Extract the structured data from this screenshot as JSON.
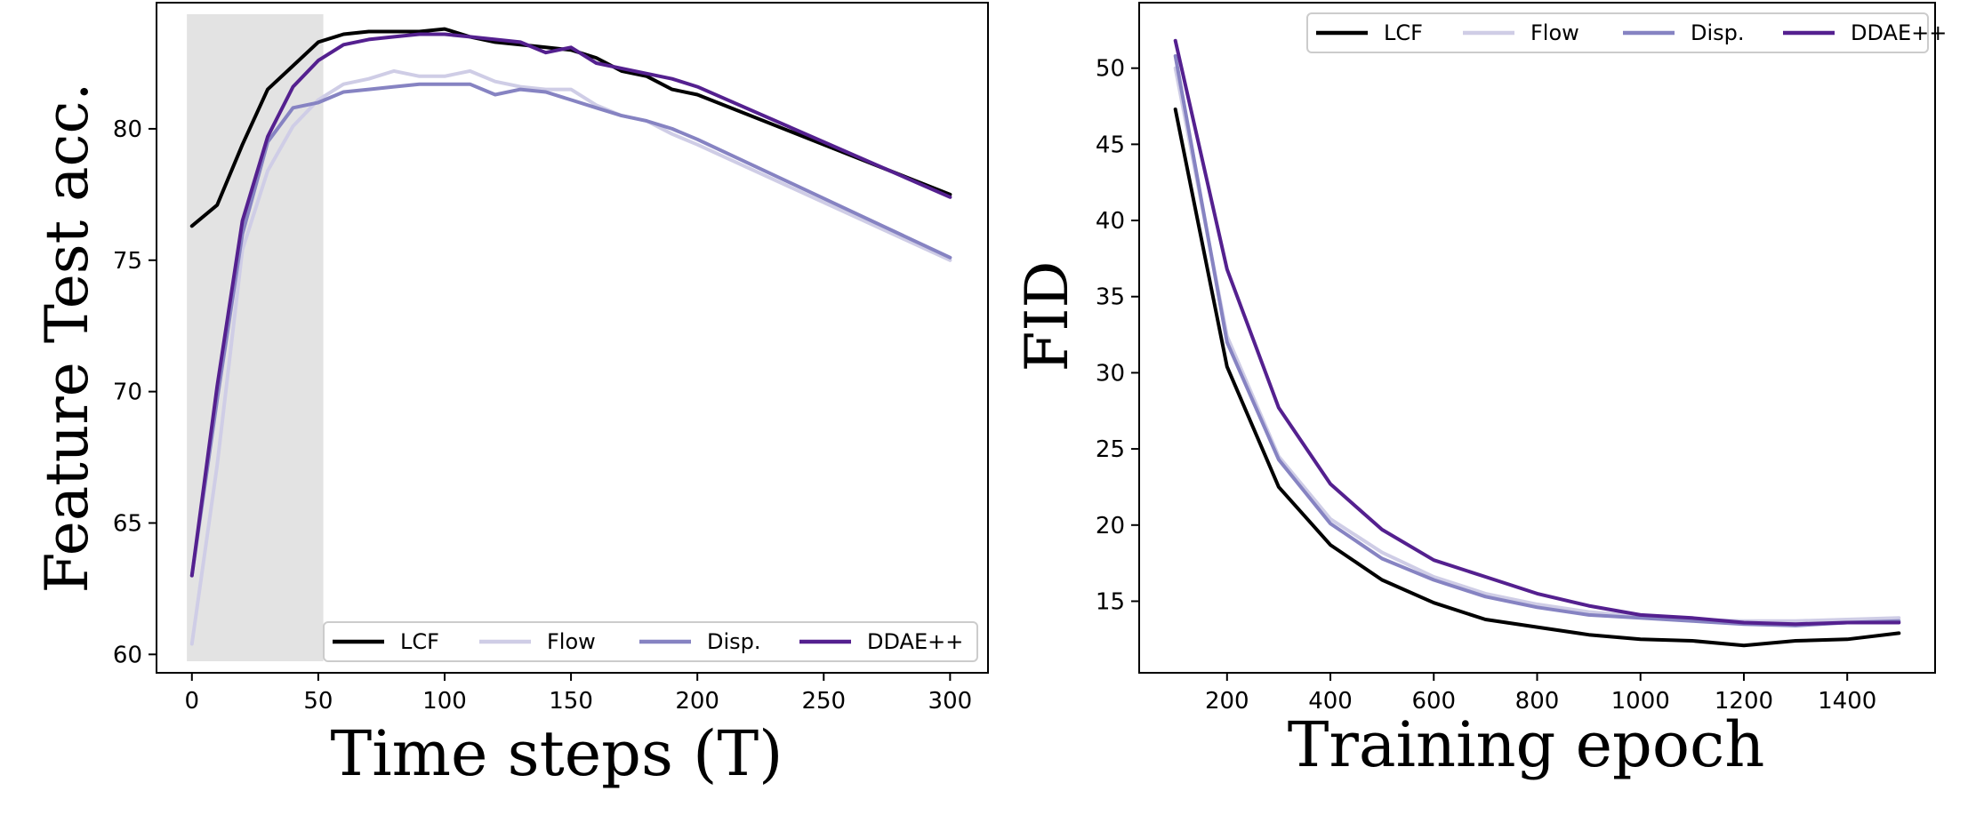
{
  "chart_data": [
    {
      "type": "line",
      "xlabel": "Time steps (T)",
      "ylabel": "Feature Test acc.",
      "xlim": [
        -14,
        315
      ],
      "ylim": [
        59.3,
        84.8
      ],
      "xticks": [
        0,
        50,
        100,
        150,
        200,
        250,
        300
      ],
      "yticks": [
        60,
        65,
        70,
        75,
        80
      ],
      "shaded_region": [
        -2,
        52
      ],
      "legend": [
        "LCF",
        "Flow",
        "Disp.",
        "DDAE++"
      ],
      "legend_position": "lower-right",
      "series": [
        {
          "name": "LCF",
          "color": "#000000",
          "x": [
            0,
            10,
            20,
            30,
            40,
            50,
            60,
            70,
            80,
            90,
            100,
            110,
            120,
            130,
            140,
            150,
            160,
            170,
            180,
            190,
            200,
            300
          ],
          "y": [
            76.3,
            77.1,
            79.4,
            81.5,
            82.4,
            83.3,
            83.6,
            83.7,
            83.7,
            83.7,
            83.8,
            83.5,
            83.3,
            83.2,
            83.1,
            83.0,
            82.7,
            82.2,
            82.0,
            81.5,
            81.3,
            77.5
          ]
        },
        {
          "name": "Flow",
          "color": "#cfcde6",
          "x": [
            0,
            10,
            20,
            30,
            40,
            50,
            60,
            70,
            80,
            90,
            100,
            110,
            120,
            130,
            140,
            150,
            160,
            170,
            180,
            190,
            200,
            300
          ],
          "y": [
            60.4,
            67.2,
            75.4,
            78.4,
            80.1,
            81.1,
            81.7,
            81.9,
            82.2,
            82.0,
            82.0,
            82.2,
            81.8,
            81.6,
            81.5,
            81.5,
            80.9,
            80.5,
            80.3,
            79.8,
            79.4,
            75.0
          ]
        },
        {
          "name": "Disp.",
          "color": "#8683c2",
          "x": [
            0,
            10,
            20,
            30,
            40,
            50,
            60,
            70,
            80,
            90,
            100,
            110,
            120,
            130,
            140,
            150,
            160,
            170,
            180,
            190,
            200,
            300
          ],
          "y": [
            63.0,
            69.7,
            76.0,
            79.5,
            80.8,
            81.0,
            81.4,
            81.5,
            81.6,
            81.7,
            81.7,
            81.7,
            81.3,
            81.5,
            81.4,
            81.1,
            80.8,
            80.5,
            80.3,
            80.0,
            79.6,
            75.1
          ]
        },
        {
          "name": "DDAE++",
          "color": "#54208f",
          "x": [
            0,
            10,
            20,
            30,
            40,
            50,
            60,
            70,
            80,
            90,
            100,
            110,
            120,
            130,
            140,
            150,
            160,
            170,
            180,
            190,
            200,
            300
          ],
          "y": [
            63.0,
            70.2,
            76.5,
            79.7,
            81.6,
            82.6,
            83.2,
            83.4,
            83.5,
            83.6,
            83.6,
            83.5,
            83.4,
            83.3,
            82.9,
            83.1,
            82.5,
            82.3,
            82.1,
            81.9,
            81.6,
            77.4
          ]
        }
      ]
    },
    {
      "type": "line",
      "xlabel": "Training epoch",
      "ylabel": "FID",
      "xlim": [
        30,
        1570
      ],
      "ylim": [
        10.3,
        54.3
      ],
      "xticks": [
        200,
        400,
        600,
        800,
        1000,
        1200,
        1400
      ],
      "yticks": [
        15,
        20,
        25,
        30,
        35,
        40,
        45,
        50
      ],
      "legend": [
        "LCF",
        "Flow",
        "Disp.",
        "DDAE++"
      ],
      "legend_position": "top-right",
      "series": [
        {
          "name": "LCF",
          "color": "#000000",
          "x": [
            100,
            200,
            300,
            400,
            500,
            600,
            700,
            800,
            900,
            1000,
            1100,
            1200,
            1300,
            1400,
            1500
          ],
          "y": [
            47.3,
            30.4,
            22.5,
            18.7,
            16.4,
            14.9,
            13.8,
            13.3,
            12.8,
            12.5,
            12.4,
            12.1,
            12.4,
            12.5,
            12.9
          ]
        },
        {
          "name": "Flow",
          "color": "#cfcde6",
          "x": [
            100,
            200,
            300,
            400,
            500,
            600,
            700,
            800,
            900,
            1000,
            1100,
            1200,
            1300,
            1400,
            1500
          ],
          "y": [
            50.0,
            32.4,
            24.5,
            20.4,
            18.2,
            16.6,
            15.5,
            14.8,
            14.3,
            14.0,
            13.8,
            13.7,
            13.7,
            13.8,
            13.9
          ]
        },
        {
          "name": "Disp.",
          "color": "#8683c2",
          "x": [
            100,
            200,
            300,
            400,
            500,
            600,
            700,
            800,
            900,
            1000,
            1100,
            1200,
            1300,
            1400,
            1500
          ],
          "y": [
            50.8,
            32.0,
            24.3,
            20.1,
            17.8,
            16.4,
            15.3,
            14.6,
            14.1,
            13.9,
            13.7,
            13.5,
            13.4,
            13.6,
            13.7
          ]
        },
        {
          "name": "DDAE++",
          "color": "#54208f",
          "x": [
            100,
            200,
            300,
            400,
            500,
            600,
            700,
            800,
            900,
            1000,
            1100,
            1200,
            1300,
            1400,
            1500
          ],
          "y": [
            51.8,
            36.8,
            27.7,
            22.7,
            19.7,
            17.7,
            16.6,
            15.5,
            14.7,
            14.1,
            13.9,
            13.6,
            13.5,
            13.6,
            13.6
          ]
        }
      ]
    }
  ]
}
